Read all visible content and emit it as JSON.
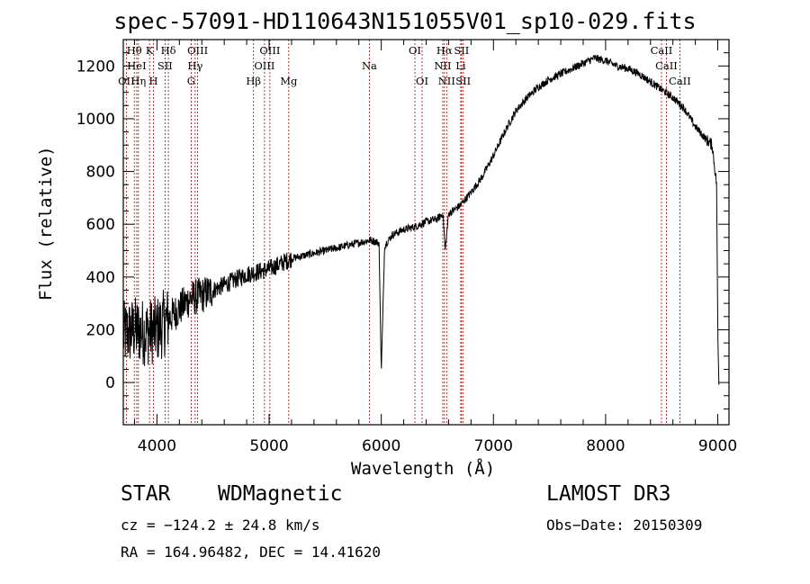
{
  "chart_data": {
    "type": "line",
    "title": "spec-57091-HD110643N151055V01_sp10-029.fits",
    "xlabel": "Wavelength (Å)",
    "ylabel": "Flux (relative)",
    "xlim": [
      3700,
      9100
    ],
    "ylim": [
      -160,
      1300
    ],
    "xticks": [
      4000,
      5000,
      6000,
      7000,
      8000,
      9000
    ],
    "yticks": [
      0,
      200,
      400,
      600,
      800,
      1000,
      1200
    ],
    "x_tick_labels": [
      "4000",
      "5000",
      "6000",
      "7000",
      "8000",
      "9000"
    ],
    "y_tick_labels": [
      "0",
      "200",
      "400",
      "600",
      "800",
      "1000",
      "1200"
    ],
    "series": [
      {
        "name": "flux",
        "x": [
          3700,
          3800,
          3900,
          4000,
          4100,
          4200,
          4300,
          4400,
          4500,
          4600,
          4700,
          4800,
          4900,
          5000,
          5100,
          5200,
          5300,
          5400,
          5500,
          5600,
          5700,
          5800,
          5900,
          5980,
          6000,
          6030,
          6100,
          6200,
          6300,
          6400,
          6500,
          6550,
          6570,
          6600,
          6700,
          6800,
          6900,
          7000,
          7100,
          7200,
          7300,
          7400,
          7500,
          7600,
          7700,
          7800,
          7900,
          8000,
          8100,
          8200,
          8300,
          8400,
          8500,
          8600,
          8700,
          8800,
          8900,
          8950,
          8990,
          9000,
          9010
        ],
        "y": [
          180,
          200,
          190,
          200,
          240,
          280,
          320,
          330,
          350,
          370,
          390,
          410,
          420,
          430,
          450,
          470,
          480,
          490,
          500,
          510,
          520,
          530,
          540,
          530,
          40,
          520,
          560,
          580,
          590,
          610,
          620,
          640,
          500,
          640,
          670,
          720,
          780,
          860,
          950,
          1030,
          1080,
          1120,
          1150,
          1170,
          1190,
          1210,
          1230,
          1220,
          1200,
          1190,
          1170,
          1140,
          1110,
          1080,
          1040,
          970,
          920,
          900,
          750,
          180,
          0
        ]
      }
    ],
    "lines": [
      {
        "label": "Hθ",
        "wl": 3798,
        "row": 1
      },
      {
        "label": "OII",
        "wl": 3727,
        "row": 3
      },
      {
        "label": "HeI",
        "wl": 3820,
        "row": 2
      },
      {
        "label": "Hη",
        "wl": 3835,
        "row": 3
      },
      {
        "label": "K",
        "wl": 3934,
        "row": 1
      },
      {
        "label": "H",
        "wl": 3969,
        "row": 3
      },
      {
        "label": "SII",
        "wl": 4072,
        "row": 2
      },
      {
        "label": "Hδ",
        "wl": 4102,
        "row": 1
      },
      {
        "label": "G",
        "wl": 4305,
        "row": 3
      },
      {
        "label": "OIII",
        "wl": 4363,
        "row": 1
      },
      {
        "label": "Hγ",
        "wl": 4341,
        "row": 2
      },
      {
        "label": "Hβ",
        "wl": 4861,
        "row": 3
      },
      {
        "label": "OIII",
        "wl": 4959,
        "row": 2
      },
      {
        "label": "OIII",
        "wl": 5007,
        "row": 1
      },
      {
        "label": "Mg",
        "wl": 5175,
        "row": 3
      },
      {
        "label": "Na",
        "wl": 5894,
        "row": 2
      },
      {
        "label": "OI",
        "wl": 6300,
        "row": 1
      },
      {
        "label": "OI",
        "wl": 6364,
        "row": 3
      },
      {
        "label": "Hα",
        "wl": 6563,
        "row": 1
      },
      {
        "label": "NII",
        "wl": 6548,
        "row": 2
      },
      {
        "label": "NII",
        "wl": 6583,
        "row": 3
      },
      {
        "label": "SII",
        "wl": 6716,
        "row": 1
      },
      {
        "label": "Li",
        "wl": 6708,
        "row": 2
      },
      {
        "label": "SII",
        "wl": 6731,
        "row": 3
      },
      {
        "label": "CaII",
        "wl": 8498,
        "row": 1
      },
      {
        "label": "CaII",
        "wl": 8542,
        "row": 2
      },
      {
        "label": "CaII",
        "wl": 8662,
        "row": 3
      }
    ]
  },
  "info": {
    "object_class": "STAR",
    "subclass": "WDMagnetic",
    "survey": "LAMOST DR3",
    "velocity": "cz = −124.2 ± 24.8 km/s",
    "obs_date": "Obs−Date: 20150309",
    "coords": "RA = 164.96482, DEC =  14.41620"
  }
}
